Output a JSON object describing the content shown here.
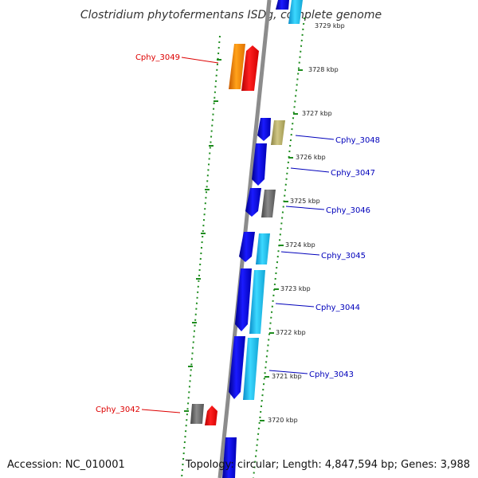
{
  "title": "Clostridium phytofermentans ISDg, complete genome",
  "footer": {
    "accession": "Accession: NC_010001",
    "topology": "Topology: circular; Length: 4,847,594 bp; Genes: 3,988"
  },
  "colors": {
    "backbone": "#8c8c8c",
    "tick_dots": "#1e8c1e",
    "label_left": "#dd0000",
    "label_right": "#0000bb",
    "blue": "#0a0ae6",
    "cyan": "#1ec8f0",
    "orange": "#ff8c00",
    "red": "#ff0000",
    "gray": "#6b6b6b",
    "khaki": "#b4aa64"
  },
  "scale_labels": [
    "3729 kbp",
    "3728 kbp",
    "3727 kbp",
    "3726 kbp",
    "3725 kbp",
    "3724 kbp",
    "3723 kbp",
    "3722 kbp",
    "3721 kbp",
    "3720 kbp"
  ],
  "gene_labels": [
    "Cphy_3049",
    "Cphy_3048",
    "Cphy_3047",
    "Cphy_3046",
    "Cphy_3045",
    "Cphy_3044",
    "Cphy_3043",
    "Cphy_3042"
  ]
}
